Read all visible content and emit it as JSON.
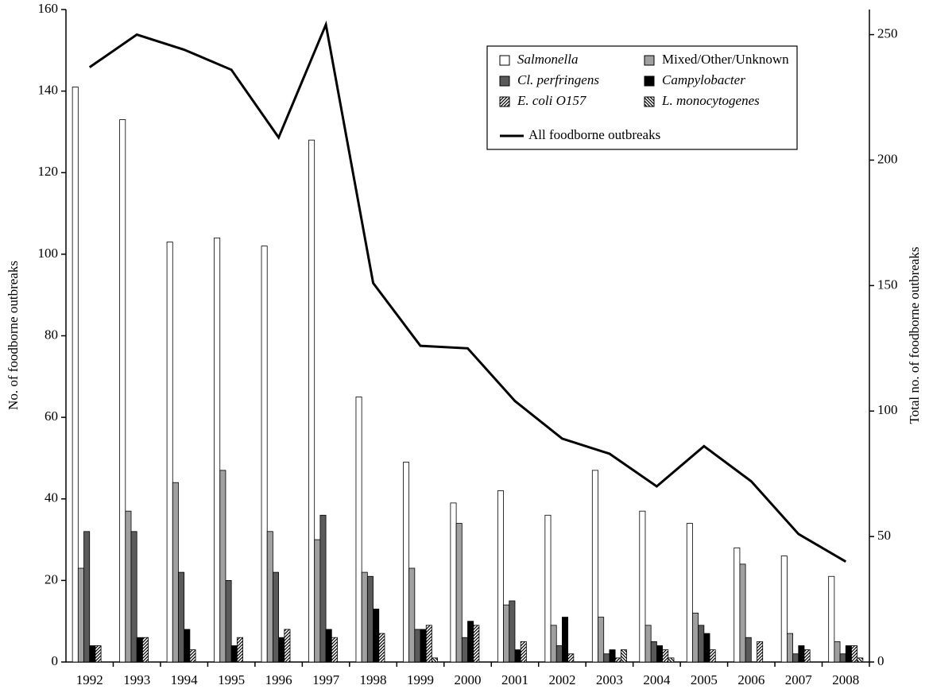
{
  "chart_data": {
    "type": "bar",
    "y_label": "No. of foodborne outbreaks",
    "y2_label": "Total no. of foodborne outbreaks",
    "categories": [
      "1992",
      "1993",
      "1994",
      "1995",
      "1996",
      "1997",
      "1998",
      "1999",
      "2000",
      "2001",
      "2002",
      "2003",
      "2004",
      "2005",
      "2006",
      "2007",
      "2008"
    ],
    "ylim": [
      0,
      160
    ],
    "yticks": [
      0,
      20,
      40,
      60,
      80,
      100,
      120,
      140,
      160
    ],
    "y2lim": [
      0,
      260
    ],
    "y2ticks": [
      0,
      50,
      100,
      150,
      200,
      250
    ],
    "legend": "upper-right",
    "series": [
      {
        "name": "Salmonella",
        "color": "#ffffff",
        "italic": true,
        "values": [
          141,
          133,
          103,
          104,
          102,
          128,
          65,
          49,
          39,
          42,
          36,
          47,
          37,
          34,
          28,
          26,
          21
        ]
      },
      {
        "name": "Mixed/Other/Unknown",
        "color": "#a0a0a0",
        "italic": false,
        "values": [
          23,
          37,
          44,
          47,
          32,
          30,
          22,
          23,
          34,
          14,
          9,
          11,
          9,
          12,
          24,
          7,
          5
        ]
      },
      {
        "name": "Cl. perfringens",
        "color": "#5a5a5a",
        "italic": true,
        "values": [
          32,
          32,
          22,
          20,
          22,
          36,
          21,
          8,
          6,
          15,
          4,
          2,
          5,
          9,
          6,
          2,
          2
        ]
      },
      {
        "name": "Campylobacter",
        "color": "#000000",
        "italic": true,
        "values": [
          4,
          6,
          8,
          4,
          6,
          8,
          13,
          8,
          10,
          3,
          11,
          3,
          4,
          7,
          0,
          4,
          4
        ]
      },
      {
        "name": "E. coli O157",
        "color": "#000000",
        "italic": true,
        "pattern": "hatch-up",
        "values": [
          4,
          6,
          3,
          6,
          8,
          6,
          7,
          9,
          9,
          5,
          2,
          1,
          3,
          3,
          5,
          3,
          4
        ]
      },
      {
        "name": "L. monocytogenes",
        "color": "#000000",
        "italic": true,
        "pattern": "hatch-down",
        "values": [
          0,
          0,
          0,
          0,
          0,
          0,
          0,
          1,
          0,
          0,
          0,
          3,
          1,
          0,
          0,
          0,
          1
        ]
      },
      {
        "name": "All foodborne outbreaks",
        "color": "#000000",
        "italic": false,
        "type": "line",
        "axis": "y2",
        "values": [
          237,
          250,
          244,
          236,
          209,
          254,
          151,
          126,
          125,
          104,
          89,
          83,
          70,
          86,
          72,
          51,
          40
        ]
      }
    ]
  }
}
